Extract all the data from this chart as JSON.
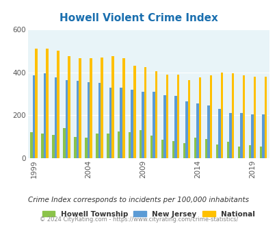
{
  "title": "Howell Violent Crime Index",
  "title_color": "#1a6faf",
  "years": [
    1999,
    2000,
    2001,
    2002,
    2003,
    2004,
    2005,
    2006,
    2007,
    2008,
    2009,
    2010,
    2011,
    2012,
    2013,
    2014,
    2015,
    2016,
    2017,
    2018,
    2019,
    2020
  ],
  "howell": [
    120,
    115,
    110,
    140,
    100,
    95,
    115,
    115,
    125,
    120,
    130,
    105,
    85,
    80,
    70,
    95,
    90,
    65,
    75,
    55,
    60,
    55
  ],
  "nj": [
    385,
    395,
    375,
    365,
    360,
    355,
    350,
    330,
    330,
    320,
    310,
    310,
    295,
    290,
    265,
    255,
    245,
    230,
    210,
    210,
    205,
    205
  ],
  "national": [
    510,
    510,
    500,
    475,
    465,
    465,
    470,
    475,
    465,
    430,
    425,
    405,
    390,
    390,
    365,
    375,
    385,
    400,
    395,
    385,
    380,
    380
  ],
  "xtick_years": [
    1999,
    2004,
    2009,
    2014,
    2019
  ],
  "ylim": [
    0,
    600
  ],
  "yticks": [
    0,
    200,
    400,
    600
  ],
  "bar_width": 0.22,
  "color_howell": "#8bc34a",
  "color_nj": "#5b9bd5",
  "color_national": "#ffc000",
  "bg_color": "#e8f4f8",
  "legend_labels": [
    "Howell Township",
    "New Jersey",
    "National"
  ],
  "subtitle": "Crime Index corresponds to incidents per 100,000 inhabitants",
  "subtitle_color": "#333333",
  "footer": "© 2024 CityRating.com - https://www.cityrating.com/crime-statistics/",
  "footer_color": "#888888"
}
